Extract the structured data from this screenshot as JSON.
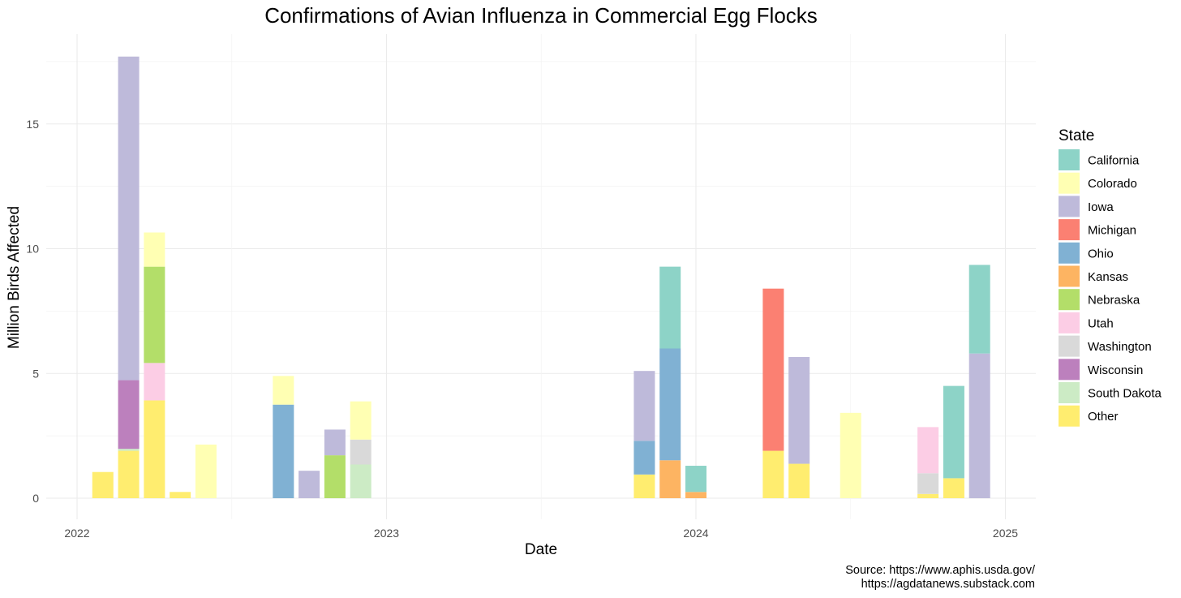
{
  "chart_data": {
    "type": "bar",
    "stacked": true,
    "title": "Confirmations of Avian Influenza in Commercial Egg Flocks",
    "xlabel": "Date",
    "ylabel": "Million Birds Affected",
    "xlim": [
      "2022-01-01",
      "2025-01-01"
    ],
    "x_ticks": [
      "2022",
      "2023",
      "2024",
      "2025"
    ],
    "ylim": [
      0,
      17.5
    ],
    "y_ticks": [
      0,
      5,
      10,
      15
    ],
    "grid": true,
    "legend": {
      "title": "State",
      "position": "right"
    },
    "series": [
      {
        "name": "California",
        "color": "#8DD3C7"
      },
      {
        "name": "Colorado",
        "color": "#FFFFB3"
      },
      {
        "name": "Iowa",
        "color": "#BEBADA"
      },
      {
        "name": "Michigan",
        "color": "#FB8072"
      },
      {
        "name": "Ohio",
        "color": "#80B1D3"
      },
      {
        "name": "Kansas",
        "color": "#FDB462"
      },
      {
        "name": "Nebraska",
        "color": "#B3DE69"
      },
      {
        "name": "Utah",
        "color": "#FCCDE5"
      },
      {
        "name": "Washington",
        "color": "#D9D9D9"
      },
      {
        "name": "Wisconsin",
        "color": "#BC80BD"
      },
      {
        "name": "South Dakota",
        "color": "#CCEBC5"
      },
      {
        "name": "Other",
        "color": "#FFED6F"
      }
    ],
    "bars": [
      {
        "month": "2022-02",
        "stack": [
          {
            "state": "Other",
            "value": 1.05
          }
        ]
      },
      {
        "month": "2022-03",
        "stack": [
          {
            "state": "Other",
            "value": 1.9
          },
          {
            "state": "South Dakota",
            "value": 0.08
          },
          {
            "state": "Wisconsin",
            "value": 2.75
          },
          {
            "state": "Iowa",
            "value": 12.97
          }
        ]
      },
      {
        "month": "2022-04",
        "stack": [
          {
            "state": "Other",
            "value": 3.92
          },
          {
            "state": "Utah",
            "value": 1.5
          },
          {
            "state": "Nebraska",
            "value": 3.86
          },
          {
            "state": "Colorado",
            "value": 1.37
          }
        ]
      },
      {
        "month": "2022-05",
        "stack": [
          {
            "state": "Other",
            "value": 0.25
          }
        ]
      },
      {
        "month": "2022-06",
        "stack": [
          {
            "state": "Colorado",
            "value": 2.15
          }
        ]
      },
      {
        "month": "2022-09",
        "stack": [
          {
            "state": "Ohio",
            "value": 3.75
          },
          {
            "state": "Colorado",
            "value": 1.15
          }
        ]
      },
      {
        "month": "2022-10",
        "stack": [
          {
            "state": "Iowa",
            "value": 1.1
          }
        ]
      },
      {
        "month": "2022-11",
        "stack": [
          {
            "state": "Nebraska",
            "value": 1.72
          },
          {
            "state": "Iowa",
            "value": 1.03
          }
        ]
      },
      {
        "month": "2022-12",
        "stack": [
          {
            "state": "South Dakota",
            "value": 1.35
          },
          {
            "state": "Washington",
            "value": 1.0
          },
          {
            "state": "Colorado",
            "value": 1.53
          }
        ]
      },
      {
        "month": "2023-11",
        "stack": [
          {
            "state": "Other",
            "value": 0.95
          },
          {
            "state": "Ohio",
            "value": 1.35
          },
          {
            "state": "Iowa",
            "value": 2.8
          }
        ]
      },
      {
        "month": "2023-12",
        "stack": [
          {
            "state": "Kansas",
            "value": 1.52
          },
          {
            "state": "Ohio",
            "value": 4.48
          },
          {
            "state": "California",
            "value": 3.28
          }
        ]
      },
      {
        "month": "2024-01",
        "stack": [
          {
            "state": "Kansas",
            "value": 0.25
          },
          {
            "state": "California",
            "value": 1.05
          }
        ]
      },
      {
        "month": "2024-04",
        "stack": [
          {
            "state": "Other",
            "value": 1.9
          },
          {
            "state": "Michigan",
            "value": 6.5
          }
        ]
      },
      {
        "month": "2024-05",
        "stack": [
          {
            "state": "Other",
            "value": 1.38
          },
          {
            "state": "Iowa",
            "value": 4.28
          }
        ]
      },
      {
        "month": "2024-07",
        "stack": [
          {
            "state": "Colorado",
            "value": 3.42
          }
        ]
      },
      {
        "month": "2024-10",
        "stack": [
          {
            "state": "Other",
            "value": 0.17
          },
          {
            "state": "Washington",
            "value": 0.83
          },
          {
            "state": "Utah",
            "value": 1.85
          }
        ]
      },
      {
        "month": "2024-11",
        "stack": [
          {
            "state": "Other",
            "value": 0.8
          },
          {
            "state": "California",
            "value": 3.7
          }
        ]
      },
      {
        "month": "2024-12",
        "stack": [
          {
            "state": "Iowa",
            "value": 5.8
          },
          {
            "state": "California",
            "value": 3.55
          }
        ]
      }
    ],
    "source_lines": [
      "Source: https://www.aphis.usda.gov/",
      "https://agdatanews.substack.com"
    ]
  }
}
